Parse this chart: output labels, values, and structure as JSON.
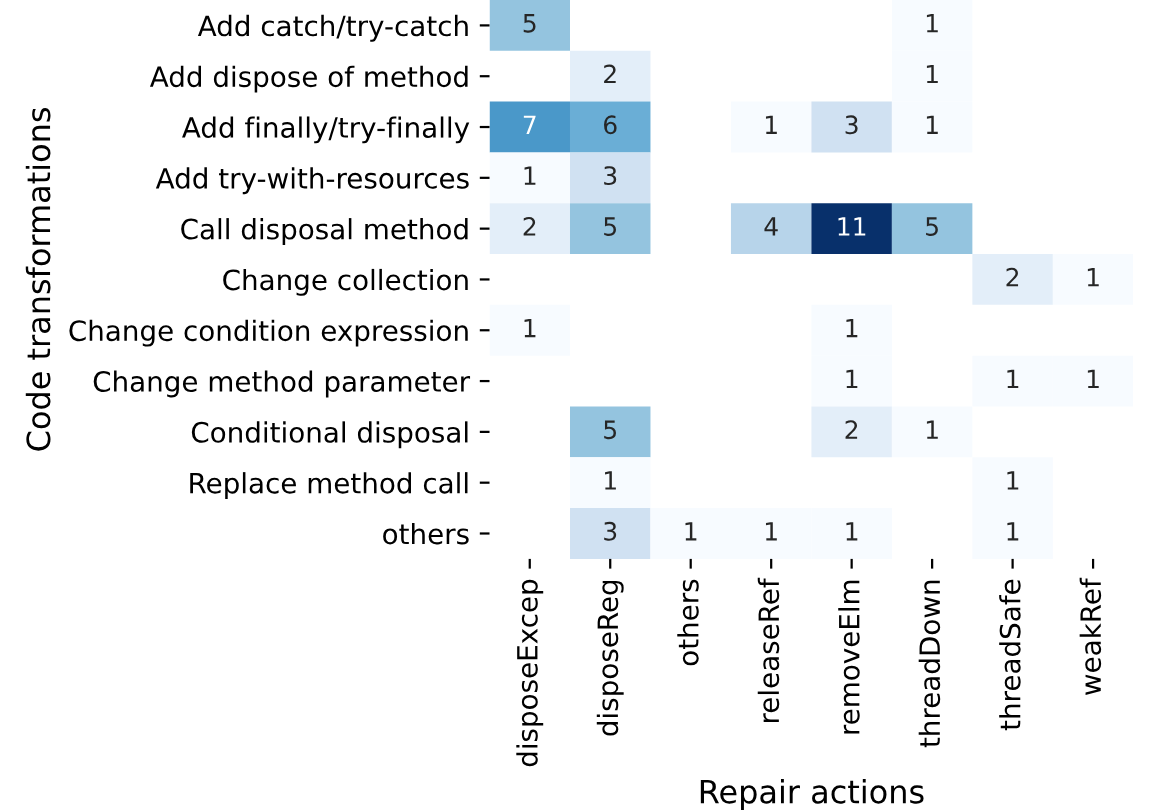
{
  "chart_data": {
    "type": "heatmap",
    "xlabel": "Repair actions",
    "ylabel": "Code transformations",
    "categories": [
      "disposeExcep",
      "disposeReg",
      "others",
      "releaseRef",
      "removeElm",
      "threadDown",
      "threadSafe",
      "weakRef"
    ],
    "y_categories": [
      "Add catch/try-catch",
      "Add dispose of method",
      "Add finally/try-finally",
      "Add try-with-resources",
      "Call disposal method",
      "Change collection",
      "Change condition expression",
      "Change method parameter",
      "Conditional disposal",
      "Replace method call",
      "others"
    ],
    "cells": [
      [
        5,
        null,
        null,
        null,
        null,
        1,
        null,
        null
      ],
      [
        null,
        2,
        null,
        null,
        null,
        1,
        null,
        null
      ],
      [
        7,
        6,
        null,
        1,
        3,
        1,
        null,
        null
      ],
      [
        1,
        3,
        null,
        null,
        null,
        null,
        null,
        null
      ],
      [
        2,
        5,
        null,
        4,
        11,
        5,
        null,
        null
      ],
      [
        null,
        null,
        null,
        null,
        null,
        null,
        2,
        1
      ],
      [
        1,
        null,
        null,
        null,
        1,
        null,
        null,
        null
      ],
      [
        null,
        null,
        null,
        null,
        1,
        null,
        1,
        1
      ],
      [
        null,
        5,
        null,
        null,
        2,
        1,
        null,
        null
      ],
      [
        null,
        1,
        null,
        null,
        null,
        null,
        1,
        null
      ],
      [
        null,
        3,
        1,
        1,
        1,
        null,
        1,
        null
      ]
    ],
    "data_labels": true
  }
}
